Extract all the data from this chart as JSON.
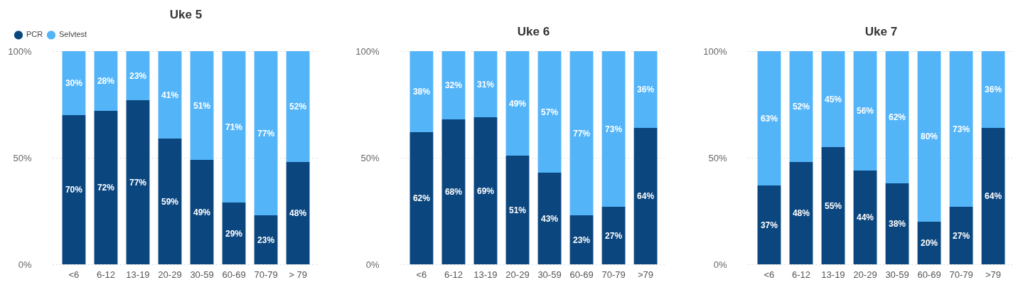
{
  "chart_data": [
    {
      "type": "bar",
      "title": "Uke 5",
      "stacked": true,
      "legend": "top left",
      "grid": "y",
      "categories": [
        "<6",
        "6-12",
        "13-19",
        "20-29",
        "30-59",
        "60-69",
        "70-79",
        "> 79"
      ],
      "ylim": [
        0,
        100
      ],
      "yticks": [
        {
          "value": 0,
          "label": "0%"
        },
        {
          "value": 50,
          "label": "50%"
        },
        {
          "value": 100,
          "label": "100%"
        }
      ],
      "series": [
        {
          "name": "PCR",
          "color": "#0b467e",
          "values": [
            70,
            72,
            77,
            59,
            49,
            29,
            23,
            48
          ],
          "value_labels": [
            "70%",
            "72%",
            "77%",
            "59%",
            "49%",
            "29%",
            "23%",
            "48%"
          ]
        },
        {
          "name": "Selvtest",
          "color": "#53b4f8",
          "values": [
            30,
            28,
            23,
            41,
            51,
            71,
            77,
            52
          ],
          "value_labels": [
            "30%",
            "28%",
            "23%",
            "41%",
            "51%",
            "71%",
            "77%",
            "52%"
          ]
        }
      ]
    },
    {
      "type": "bar",
      "title": "Uke 6",
      "stacked": true,
      "grid": "y",
      "categories": [
        "<6",
        "6-12",
        "13-19",
        "20-29",
        "30-59",
        "60-69",
        "70-79",
        ">79"
      ],
      "ylim": [
        0,
        100
      ],
      "yticks": [
        {
          "value": 0,
          "label": "0%"
        },
        {
          "value": 50,
          "label": "50%"
        },
        {
          "value": 100,
          "label": "100%"
        }
      ],
      "series": [
        {
          "color": "#0b467e",
          "values": [
            62,
            68,
            69,
            51,
            43,
            23,
            27,
            64
          ],
          "value_labels": [
            "62%",
            "68%",
            "69%",
            "51%",
            "43%",
            "23%",
            "27%",
            "64%"
          ]
        },
        {
          "color": "#53b4f8",
          "values": [
            38,
            32,
            31,
            49,
            57,
            77,
            73,
            36
          ],
          "value_labels": [
            "38%",
            "32%",
            "31%",
            "49%",
            "57%",
            "77%",
            "73%",
            "36%"
          ]
        }
      ]
    },
    {
      "type": "bar",
      "title": "Uke 7",
      "stacked": true,
      "grid": "y",
      "categories": [
        "<6",
        "6-12",
        "13-19",
        "20-29",
        "30-59",
        "60-69",
        "70-79",
        ">79"
      ],
      "ylim": [
        0,
        100
      ],
      "yticks": [
        {
          "value": 0,
          "label": "0%"
        },
        {
          "value": 50,
          "label": "50%"
        },
        {
          "value": 100,
          "label": "100%"
        }
      ],
      "series": [
        {
          "color": "#0b467e",
          "values": [
            37,
            48,
            55,
            44,
            38,
            20,
            27,
            64
          ],
          "value_labels": [
            "37%",
            "48%",
            "55%",
            "44%",
            "38%",
            "20%",
            "27%",
            "64%"
          ]
        },
        {
          "color": "#53b4f8",
          "values": [
            63,
            52,
            45,
            56,
            62,
            80,
            73,
            36
          ],
          "value_labels": [
            "63%",
            "52%",
            "45%",
            "56%",
            "62%",
            "80%",
            "73%",
            "36%"
          ]
        }
      ]
    }
  ]
}
